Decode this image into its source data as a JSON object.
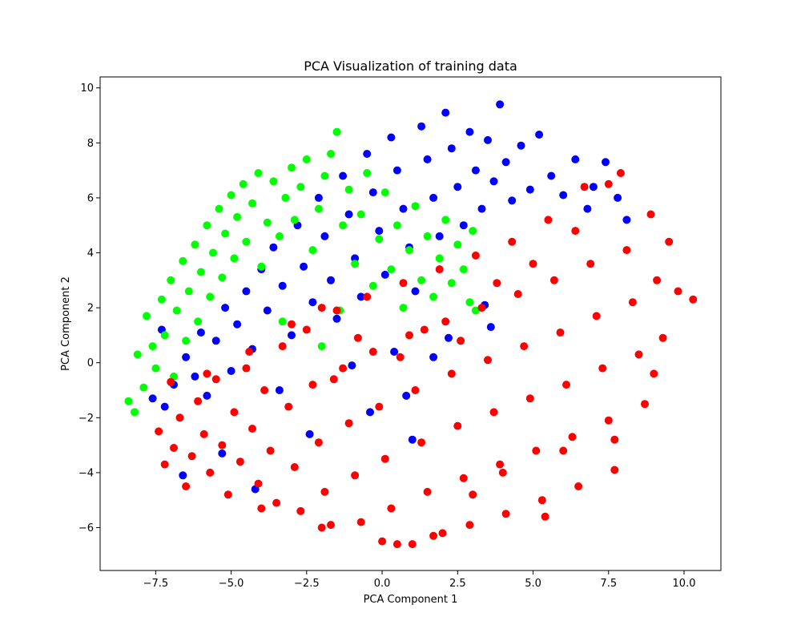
{
  "chart_data": {
    "type": "scatter",
    "title": "PCA Visualization of training data",
    "xlabel": "PCA Component 1",
    "ylabel": "PCA Component 2",
    "xlim": [
      -9.34,
      11.22
    ],
    "ylim": [
      -7.56,
      10.4
    ],
    "xticks": [
      -7.5,
      -5.0,
      -2.5,
      0.0,
      2.5,
      5.0,
      7.5,
      10.0
    ],
    "xtick_labels": [
      "−7.5",
      "−5.0",
      "−2.5",
      "0.0",
      "2.5",
      "5.0",
      "7.5",
      "10.0"
    ],
    "yticks": [
      -6,
      -4,
      -2,
      0,
      2,
      4,
      6,
      8,
      10
    ],
    "ytick_labels": [
      "−6",
      "−4",
      "−2",
      "0",
      "2",
      "4",
      "6",
      "8",
      "10"
    ],
    "grid": false,
    "series": [
      {
        "color": "#0000ff",
        "points": [
          [
            -7.6,
            -1.3
          ],
          [
            -7.3,
            1.2
          ],
          [
            -7.2,
            -1.6
          ],
          [
            -6.9,
            -0.8
          ],
          [
            -6.5,
            0.2
          ],
          [
            -6.2,
            -0.5
          ],
          [
            -6.0,
            1.1
          ],
          [
            -5.8,
            -1.2
          ],
          [
            -5.5,
            0.8
          ],
          [
            -5.2,
            2.0
          ],
          [
            -5.0,
            -0.3
          ],
          [
            -4.8,
            1.4
          ],
          [
            -4.5,
            2.6
          ],
          [
            -4.3,
            0.5
          ],
          [
            -4.0,
            3.4
          ],
          [
            -3.8,
            1.9
          ],
          [
            -3.6,
            4.2
          ],
          [
            -3.3,
            2.8
          ],
          [
            -3.0,
            1.0
          ],
          [
            -2.8,
            5.0
          ],
          [
            -2.6,
            3.5
          ],
          [
            -2.3,
            2.2
          ],
          [
            -2.1,
            6.0
          ],
          [
            -1.9,
            4.6
          ],
          [
            -1.7,
            3.0
          ],
          [
            -1.5,
            1.6
          ],
          [
            -1.3,
            6.8
          ],
          [
            -1.1,
            5.4
          ],
          [
            -0.9,
            3.8
          ],
          [
            -0.7,
            2.4
          ],
          [
            -0.5,
            7.6
          ],
          [
            -0.3,
            6.2
          ],
          [
            -0.1,
            4.8
          ],
          [
            0.1,
            3.2
          ],
          [
            0.3,
            8.2
          ],
          [
            0.5,
            7.0
          ],
          [
            0.7,
            5.6
          ],
          [
            0.9,
            4.2
          ],
          [
            1.1,
            2.6
          ],
          [
            1.3,
            8.6
          ],
          [
            1.5,
            7.4
          ],
          [
            1.7,
            6.0
          ],
          [
            1.9,
            4.6
          ],
          [
            2.1,
            9.1
          ],
          [
            2.3,
            7.8
          ],
          [
            2.5,
            6.4
          ],
          [
            2.7,
            5.0
          ],
          [
            2.9,
            8.4
          ],
          [
            3.1,
            7.0
          ],
          [
            3.3,
            5.6
          ],
          [
            3.5,
            8.1
          ],
          [
            3.7,
            6.6
          ],
          [
            3.9,
            9.4
          ],
          [
            4.1,
            7.3
          ],
          [
            4.3,
            5.9
          ],
          [
            4.6,
            7.9
          ],
          [
            4.9,
            6.3
          ],
          [
            5.2,
            8.3
          ],
          [
            5.6,
            6.8
          ],
          [
            6.0,
            6.1
          ],
          [
            6.4,
            7.4
          ],
          [
            6.8,
            5.6
          ],
          [
            7.0,
            6.4
          ],
          [
            7.4,
            7.3
          ],
          [
            7.8,
            6.0
          ],
          [
            8.1,
            5.2
          ],
          [
            -6.6,
            -4.1
          ],
          [
            -4.2,
            -4.6
          ],
          [
            -2.4,
            -2.6
          ],
          [
            -0.4,
            -1.8
          ],
          [
            1.0,
            -2.8
          ],
          [
            -5.3,
            -3.3
          ],
          [
            3.4,
            2.1
          ],
          [
            3.6,
            1.3
          ],
          [
            2.2,
            0.9
          ],
          [
            1.7,
            0.2
          ],
          [
            0.4,
            0.4
          ],
          [
            -1.0,
            -0.1
          ],
          [
            -3.4,
            -1.0
          ],
          [
            0.8,
            -1.2
          ]
        ]
      },
      {
        "color": "#00ff00",
        "points": [
          [
            -8.4,
            -1.4
          ],
          [
            -8.2,
            -1.8
          ],
          [
            -8.1,
            0.3
          ],
          [
            -7.9,
            -0.9
          ],
          [
            -7.8,
            1.7
          ],
          [
            -7.6,
            0.6
          ],
          [
            -7.5,
            -0.2
          ],
          [
            -7.3,
            2.3
          ],
          [
            -7.2,
            1.0
          ],
          [
            -7.0,
            3.0
          ],
          [
            -6.9,
            -0.5
          ],
          [
            -6.8,
            1.9
          ],
          [
            -6.6,
            3.7
          ],
          [
            -6.5,
            0.8
          ],
          [
            -6.4,
            2.6
          ],
          [
            -6.2,
            4.3
          ],
          [
            -6.1,
            1.5
          ],
          [
            -6.0,
            3.3
          ],
          [
            -5.8,
            5.0
          ],
          [
            -5.7,
            2.4
          ],
          [
            -5.6,
            4.0
          ],
          [
            -5.4,
            5.6
          ],
          [
            -5.3,
            3.1
          ],
          [
            -5.2,
            4.7
          ],
          [
            -5.0,
            6.1
          ],
          [
            -4.9,
            3.8
          ],
          [
            -4.8,
            5.3
          ],
          [
            -4.6,
            6.5
          ],
          [
            -4.5,
            4.4
          ],
          [
            -4.3,
            5.8
          ],
          [
            -4.1,
            6.9
          ],
          [
            -4.0,
            3.5
          ],
          [
            -3.8,
            5.1
          ],
          [
            -3.6,
            6.6
          ],
          [
            -3.4,
            4.6
          ],
          [
            -3.2,
            6.0
          ],
          [
            -3.0,
            7.1
          ],
          [
            -2.9,
            5.2
          ],
          [
            -2.7,
            6.4
          ],
          [
            -2.5,
            7.4
          ],
          [
            -2.3,
            4.1
          ],
          [
            -2.1,
            5.6
          ],
          [
            -1.9,
            6.8
          ],
          [
            -1.7,
            7.6
          ],
          [
            -1.5,
            8.4
          ],
          [
            -1.3,
            5.0
          ],
          [
            -1.1,
            6.3
          ],
          [
            -0.9,
            3.6
          ],
          [
            -0.7,
            5.4
          ],
          [
            -0.5,
            6.9
          ],
          [
            -0.3,
            2.8
          ],
          [
            -0.1,
            4.5
          ],
          [
            0.1,
            6.2
          ],
          [
            0.3,
            3.4
          ],
          [
            0.5,
            5.0
          ],
          [
            0.7,
            2.0
          ],
          [
            0.9,
            4.1
          ],
          [
            1.1,
            5.7
          ],
          [
            1.3,
            3.0
          ],
          [
            1.5,
            4.6
          ],
          [
            1.7,
            2.4
          ],
          [
            1.9,
            3.8
          ],
          [
            2.1,
            5.2
          ],
          [
            2.3,
            2.9
          ],
          [
            2.5,
            4.3
          ],
          [
            2.7,
            3.4
          ],
          [
            2.9,
            2.2
          ],
          [
            3.0,
            4.8
          ],
          [
            3.1,
            1.9
          ],
          [
            -2.0,
            0.6
          ],
          [
            -3.3,
            1.5
          ],
          [
            -1.4,
            1.9
          ]
        ]
      },
      {
        "color": "#ff0000",
        "points": [
          [
            -7.4,
            -2.5
          ],
          [
            -7.2,
            -3.7
          ],
          [
            -7.0,
            -0.7
          ],
          [
            -6.9,
            -3.1
          ],
          [
            -6.7,
            -2.0
          ],
          [
            -6.5,
            -4.5
          ],
          [
            -6.3,
            -3.4
          ],
          [
            -6.1,
            -1.4
          ],
          [
            -5.9,
            -2.6
          ],
          [
            -5.7,
            -4.0
          ],
          [
            -5.5,
            -0.6
          ],
          [
            -5.3,
            -3.0
          ],
          [
            -5.1,
            -4.8
          ],
          [
            -4.9,
            -1.8
          ],
          [
            -4.7,
            -3.6
          ],
          [
            -4.5,
            -0.2
          ],
          [
            -4.3,
            -2.4
          ],
          [
            -4.1,
            -4.4
          ],
          [
            -3.9,
            -1.0
          ],
          [
            -3.7,
            -3.2
          ],
          [
            -3.5,
            -5.1
          ],
          [
            -3.3,
            0.6
          ],
          [
            -3.1,
            -1.6
          ],
          [
            -2.9,
            -3.8
          ],
          [
            -2.7,
            -5.4
          ],
          [
            -2.5,
            1.2
          ],
          [
            -2.3,
            -0.8
          ],
          [
            -2.1,
            -2.9
          ],
          [
            -1.9,
            -4.7
          ],
          [
            -1.7,
            -5.9
          ],
          [
            -1.5,
            1.9
          ],
          [
            -1.3,
            -0.2
          ],
          [
            -1.1,
            -2.2
          ],
          [
            -0.9,
            -4.1
          ],
          [
            -0.7,
            -5.8
          ],
          [
            -0.5,
            2.4
          ],
          [
            -0.3,
            0.4
          ],
          [
            -0.1,
            -1.6
          ],
          [
            0.1,
            -3.5
          ],
          [
            0.3,
            -5.3
          ],
          [
            0.5,
            -6.6
          ],
          [
            0.7,
            2.9
          ],
          [
            0.9,
            1.0
          ],
          [
            1.1,
            -1.0
          ],
          [
            1.3,
            -2.9
          ],
          [
            1.5,
            -4.7
          ],
          [
            1.7,
            -6.3
          ],
          [
            1.9,
            3.4
          ],
          [
            2.1,
            1.5
          ],
          [
            2.3,
            -0.4
          ],
          [
            2.5,
            -2.3
          ],
          [
            2.7,
            -4.2
          ],
          [
            2.9,
            -5.9
          ],
          [
            3.1,
            3.9
          ],
          [
            3.3,
            2.0
          ],
          [
            3.5,
            0.1
          ],
          [
            3.7,
            -1.8
          ],
          [
            3.9,
            -3.7
          ],
          [
            4.1,
            -5.5
          ],
          [
            4.3,
            4.4
          ],
          [
            4.5,
            2.5
          ],
          [
            4.7,
            0.6
          ],
          [
            4.9,
            -1.3
          ],
          [
            5.1,
            -3.2
          ],
          [
            5.3,
            -5.0
          ],
          [
            5.5,
            5.2
          ],
          [
            5.7,
            3.0
          ],
          [
            5.9,
            1.1
          ],
          [
            6.1,
            -0.8
          ],
          [
            6.3,
            -2.7
          ],
          [
            6.5,
            -4.5
          ],
          [
            6.7,
            6.4
          ],
          [
            6.9,
            3.6
          ],
          [
            7.1,
            1.7
          ],
          [
            7.3,
            -0.2
          ],
          [
            7.5,
            -2.1
          ],
          [
            7.7,
            -3.9
          ],
          [
            7.9,
            6.9
          ],
          [
            8.1,
            4.1
          ],
          [
            8.3,
            2.2
          ],
          [
            8.5,
            0.3
          ],
          [
            8.7,
            -1.5
          ],
          [
            8.9,
            5.4
          ],
          [
            9.1,
            3.0
          ],
          [
            9.3,
            0.9
          ],
          [
            9.5,
            4.4
          ],
          [
            9.8,
            2.6
          ],
          [
            10.3,
            2.3
          ],
          [
            0.0,
            -6.5
          ],
          [
            -2.0,
            -6.0
          ],
          [
            1.0,
            -6.6
          ],
          [
            2.0,
            -6.2
          ],
          [
            -4.0,
            -5.3
          ],
          [
            3.0,
            -4.8
          ],
          [
            4.0,
            -4.0
          ],
          [
            6.0,
            -3.2
          ],
          [
            0.6,
            0.2
          ],
          [
            1.4,
            1.2
          ],
          [
            -1.6,
            -0.6
          ],
          [
            -0.8,
            0.9
          ],
          [
            2.6,
            0.8
          ],
          [
            3.8,
            2.9
          ],
          [
            5.0,
            3.6
          ],
          [
            6.4,
            4.8
          ],
          [
            -5.8,
            -0.4
          ],
          [
            -4.4,
            0.4
          ],
          [
            -3.0,
            1.4
          ],
          [
            -2.0,
            2.0
          ],
          [
            7.5,
            6.5
          ],
          [
            9.0,
            -0.4
          ],
          [
            7.7,
            -2.8
          ],
          [
            5.4,
            -5.6
          ]
        ]
      }
    ]
  }
}
